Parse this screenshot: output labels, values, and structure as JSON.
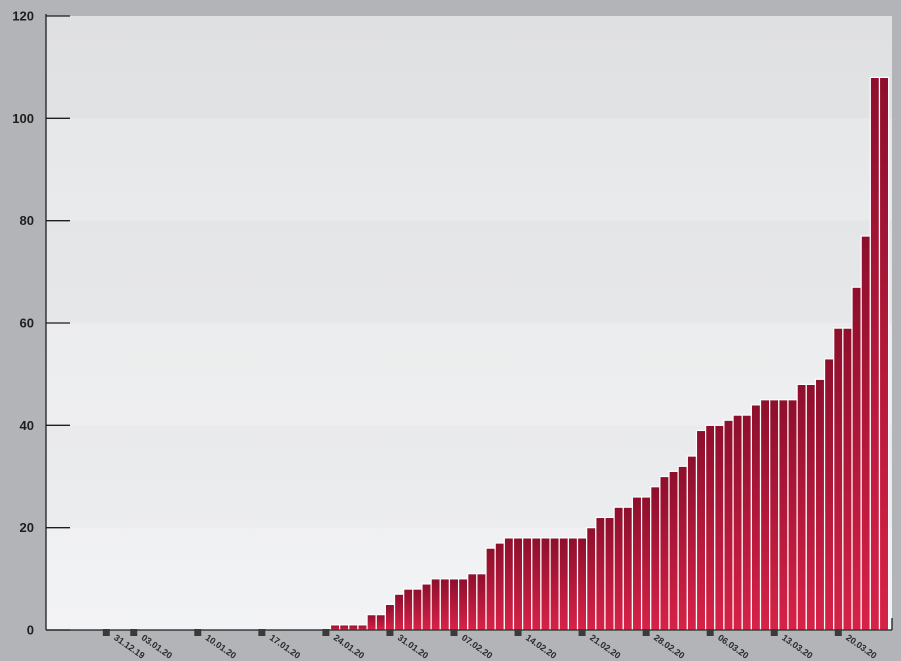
{
  "chart_data": {
    "type": "bar",
    "title": "",
    "xlabel": "",
    "ylabel": "",
    "ylim": [
      0,
      120
    ],
    "yticks": [
      0,
      20,
      40,
      60,
      80,
      100,
      120
    ],
    "start_date": "31.12.19",
    "x_tick_labels": [
      "31.12.19",
      "03.01.20",
      "10.01.20",
      "17.01.20",
      "24.01.20",
      "31.01.20",
      "07.02.20",
      "14.02.20",
      "21.02.20",
      "28.02.20",
      "06.03.20",
      "13.03.20",
      "20.03.20"
    ],
    "values": [
      0,
      0,
      0,
      0,
      0,
      0,
      0,
      0,
      0,
      0,
      0,
      0,
      0,
      0,
      0,
      0,
      0,
      0,
      0,
      0,
      0,
      0,
      0,
      0,
      0,
      1,
      1,
      1,
      1,
      3,
      3,
      5,
      7,
      8,
      8,
      9,
      10,
      10,
      10,
      10,
      11,
      11,
      16,
      17,
      18,
      18,
      18,
      18,
      18,
      18,
      18,
      18,
      18,
      20,
      22,
      22,
      24,
      24,
      26,
      26,
      28,
      30,
      31,
      32,
      34,
      39,
      40,
      40,
      41,
      42,
      42,
      44,
      45,
      45,
      45,
      45,
      48,
      48,
      49,
      53,
      59,
      59,
      67,
      77,
      108,
      108
    ],
    "grid": false,
    "legend": "none",
    "colors": {
      "bar_top": "#8d0f2c",
      "bar_bottom": "#d72248",
      "bar_separator": "#ffffff",
      "plot_bg_top": "#e2e3e5",
      "plot_bg_bottom": "#f1f2f4",
      "page_bg": "#b3b4b8",
      "axis": "#1e1e1e",
      "tick_marker": "#3a3a3a"
    }
  }
}
